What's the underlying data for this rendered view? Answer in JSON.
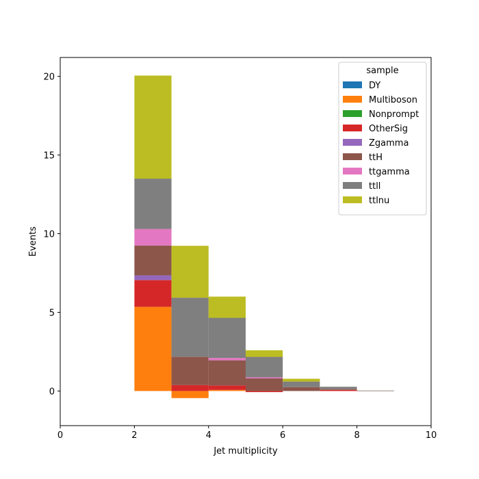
{
  "chart_data": {
    "type": "bar",
    "stacked": true,
    "xlabel": "Jet multiplicity",
    "ylabel": "Events",
    "xlim": [
      0,
      10
    ],
    "ylim": [
      -2.2,
      21.2
    ],
    "xticks": [
      0,
      2,
      4,
      6,
      8,
      10
    ],
    "yticks": [
      0,
      5,
      10,
      15,
      20
    ],
    "bin_edges": [
      2,
      3,
      4,
      5,
      6,
      7,
      8,
      9
    ],
    "legend": {
      "title": "sample",
      "placement": "upper right"
    },
    "series": [
      {
        "name": "DY",
        "color": "#1f77b4",
        "values": [
          0,
          0,
          0,
          0,
          0,
          0,
          0
        ]
      },
      {
        "name": "Multiboson",
        "color": "#ff7f0e",
        "values": [
          5.35,
          -0.45,
          0.07,
          0.0,
          0.0,
          0.0,
          0.0
        ]
      },
      {
        "name": "Nonprompt",
        "color": "#2ca02c",
        "values": [
          0,
          0,
          0,
          0,
          0,
          0,
          0
        ]
      },
      {
        "name": "OtherSig",
        "color": "#d62728",
        "values": [
          1.7,
          0.38,
          0.28,
          -0.07,
          0.0,
          0.07,
          0.0
        ]
      },
      {
        "name": "Zgamma",
        "color": "#9467bd",
        "values": [
          0.3,
          0,
          0,
          0,
          0,
          0,
          0
        ]
      },
      {
        "name": "ttH",
        "color": "#8c564b",
        "values": [
          1.9,
          1.8,
          1.6,
          0.8,
          0.25,
          0.05,
          0.02
        ]
      },
      {
        "name": "ttgamma",
        "color": "#e377c2",
        "values": [
          1.05,
          0,
          0.15,
          0.07,
          0,
          0,
          0
        ]
      },
      {
        "name": "ttll",
        "color": "#7f7f7f",
        "values": [
          3.2,
          3.75,
          2.55,
          1.3,
          0.35,
          0.15,
          0.01
        ]
      },
      {
        "name": "ttlnu",
        "color": "#bcbd22",
        "values": [
          6.55,
          3.3,
          1.35,
          0.42,
          0.18,
          0.0,
          0.0
        ]
      }
    ]
  }
}
